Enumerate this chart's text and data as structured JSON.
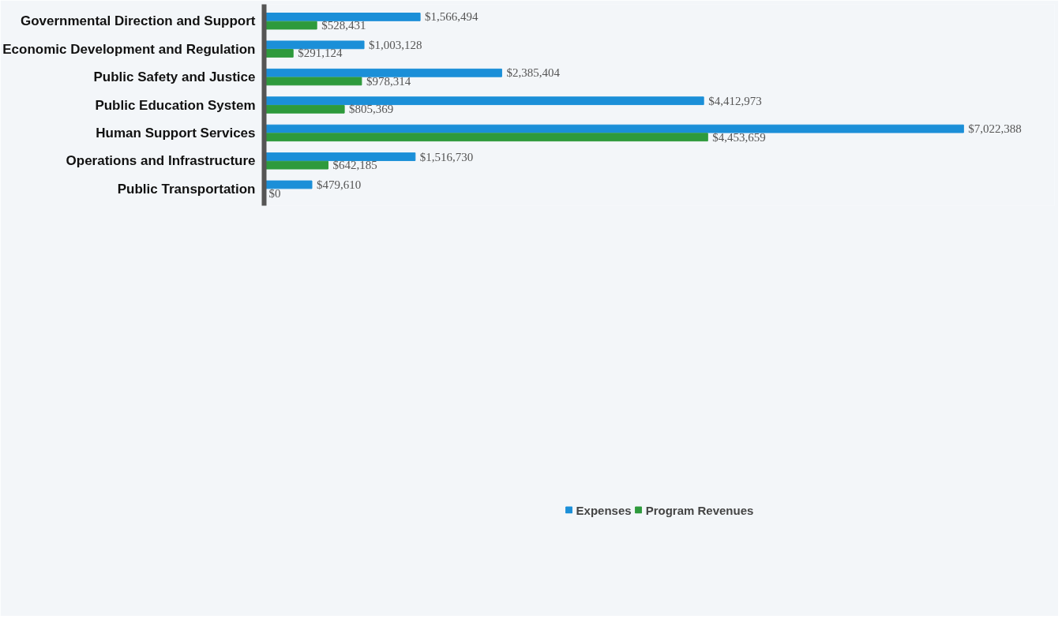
{
  "chart_data": {
    "type": "bar",
    "orientation": "horizontal",
    "categories": [
      "Governmental Direction and Support",
      "Economic Development and Regulation",
      "Public Safety and Justice",
      "Public Education System",
      "Human Support Services",
      "Operations and Infrastructure",
      "Public Transportation"
    ],
    "series": [
      {
        "name": "Expenses",
        "color": "#1b8fd8",
        "values": [
          1566494,
          1003128,
          2385404,
          4412973,
          7022388,
          1516730,
          479610
        ],
        "value_labels": [
          "$1,566,494",
          "$1,003,128",
          "$2,385,404",
          "$4,412,973",
          "$7,022,388",
          "$1,516,730",
          "$479,610"
        ]
      },
      {
        "name": "Program Revenues",
        "color": "#2e9a3c",
        "values": [
          528431,
          291124,
          978314,
          805369,
          4453659,
          642185,
          0
        ],
        "value_labels": [
          "$528,431",
          "$291,124",
          "$978,314",
          "$805,369",
          "$4,453,659",
          "$642,185",
          "$0"
        ]
      }
    ],
    "legend": "bottom",
    "tick_labels": "y",
    "grid": false
  }
}
